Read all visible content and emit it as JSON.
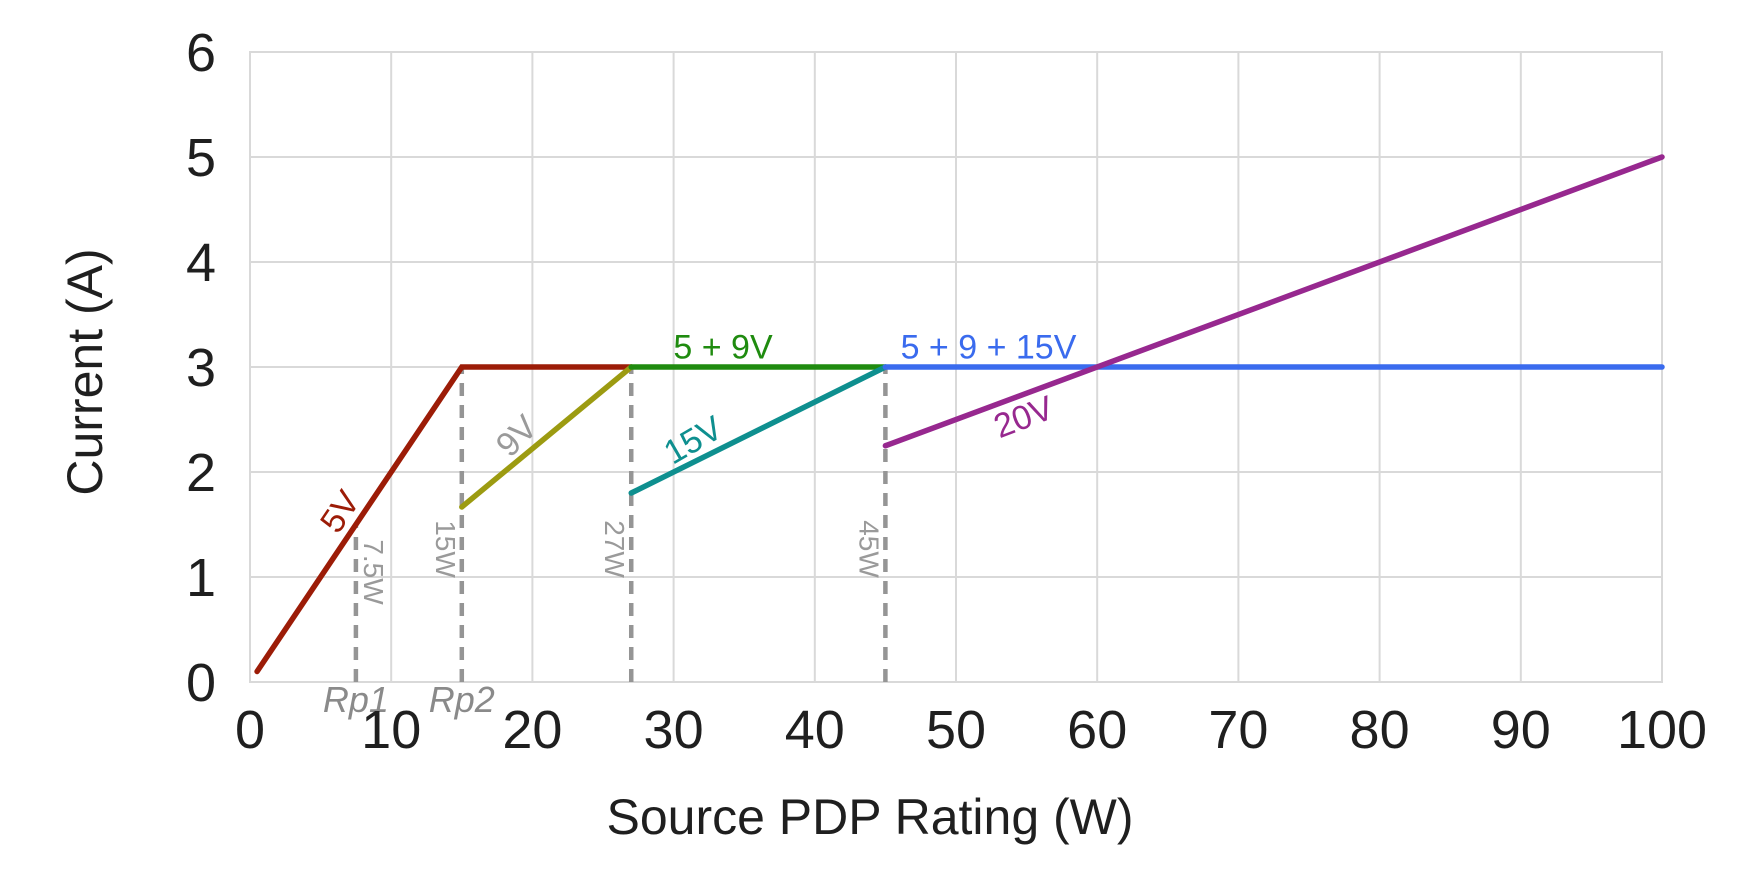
{
  "chart_data": {
    "type": "line",
    "xlabel": "Source PDP Rating (W)",
    "ylabel": "Current (A)",
    "xlim": [
      0,
      100
    ],
    "ylim": [
      0,
      6
    ],
    "x_ticks": [
      0,
      10,
      20,
      30,
      40,
      50,
      60,
      70,
      80,
      90,
      100
    ],
    "y_ticks": [
      0,
      1,
      2,
      3,
      4,
      5,
      6
    ],
    "grid": true,
    "legend_position": "none",
    "series": [
      {
        "name": "5V",
        "color": "#9C1C07",
        "points": [
          [
            0.5,
            0.1
          ],
          [
            15,
            3
          ],
          [
            27,
            3
          ]
        ],
        "label": {
          "text": "5V",
          "x": 6.4,
          "y": 1.62,
          "rotation": -56
        }
      },
      {
        "name": "9V",
        "color": "#9C9B11",
        "points": [
          [
            15,
            1.667
          ],
          [
            27,
            3
          ]
        ],
        "label": {
          "text": "9V",
          "x": 18.9,
          "y": 2.34,
          "rotation": -45,
          "color": "#9A9A9A"
        }
      },
      {
        "name": "5 + 9V",
        "color": "#1F8B0F",
        "points": [
          [
            27,
            3
          ],
          [
            45,
            3
          ]
        ],
        "label": {
          "text": "5 + 9V",
          "x": 33.5,
          "y": 3.14,
          "rotation": 0
        }
      },
      {
        "name": "15V",
        "color": "#0E8F8F",
        "points": [
          [
            27,
            1.8
          ],
          [
            45,
            3
          ]
        ],
        "label": {
          "text": "15V",
          "x": 31.4,
          "y": 2.3,
          "rotation": -30
        }
      },
      {
        "name": "5 + 9 + 15V",
        "color": "#3A6BEE",
        "points": [
          [
            45,
            3
          ],
          [
            100,
            3
          ]
        ],
        "label": {
          "text": "5 + 9 + 15V",
          "x": 52.3,
          "y": 3.14,
          "rotation": 0
        }
      },
      {
        "name": "20V",
        "color": "#97288F",
        "points": [
          [
            45,
            2.25
          ],
          [
            100,
            5
          ]
        ],
        "label": {
          "text": "20V",
          "x": 54.8,
          "y": 2.52,
          "rotation": -21
        }
      }
    ],
    "threshold_lines": [
      {
        "label": "7.5W",
        "x": 7.5,
        "y_top": 1.5,
        "axis_label": "Rp1",
        "label_side": "right"
      },
      {
        "label": "15W",
        "x": 15,
        "y_top": 3,
        "axis_label": "Rp2",
        "label_side": "left"
      },
      {
        "label": "27W",
        "x": 27,
        "y_top": 3,
        "axis_label": "",
        "label_side": "left"
      },
      {
        "label": "45W",
        "x": 45,
        "y_top": 3,
        "axis_label": "",
        "label_side": "left"
      }
    ],
    "colors": {
      "grid": "#D9D9D9",
      "dashed": "#959595",
      "gray_text": "#9A9A9A",
      "rp_text": "#8A8A8A",
      "tick_text": "#1F1F1F"
    }
  }
}
